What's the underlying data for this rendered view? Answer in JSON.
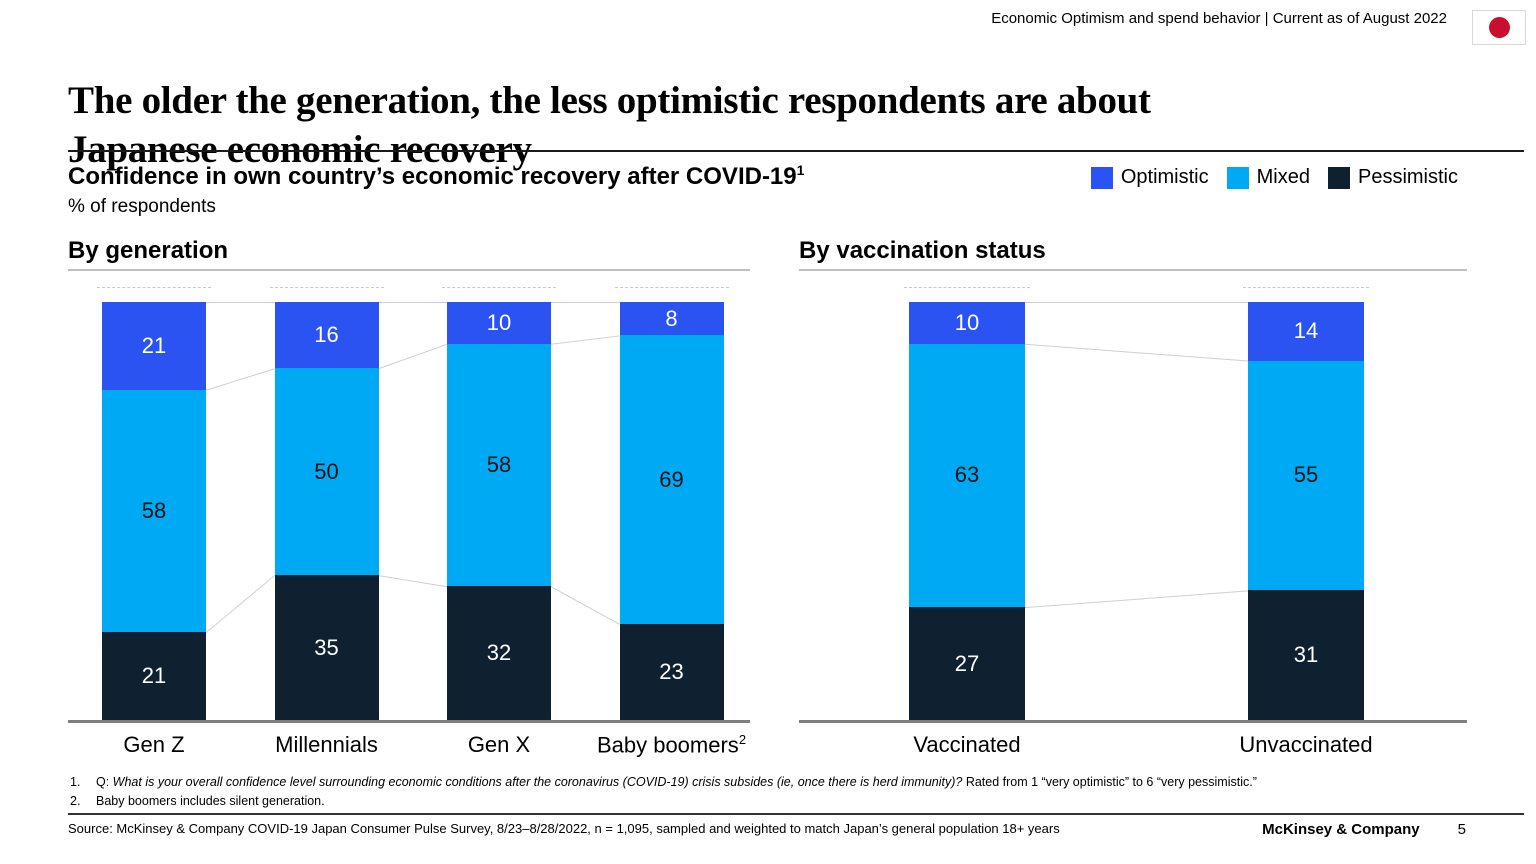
{
  "header": {
    "eyebrow": "Economic Optimism and spend behavior | Current as of August 2022",
    "flag_red": "#c8102e"
  },
  "title": {
    "full": "The older the generation, the less optimistic respondents are about Japanese economic recovery",
    "line1": "The older the generation, the less optimistic respondents are about",
    "line2": "Japanese economic recovery"
  },
  "subtitle": {
    "heading": "Confidence in own country’s economic recovery after COVID-19",
    "heading_footnote_ref": "1",
    "unit": "% of respondents"
  },
  "legend": [
    {
      "label": "Optimistic",
      "color": "#2b53f1"
    },
    {
      "label": "Mixed",
      "color": "#00a9f4"
    },
    {
      "label": "Pessimistic",
      "color": "#0f2130"
    }
  ],
  "chart_data": [
    {
      "type": "bar",
      "subtype": "stacked-column-100pct",
      "title": "By generation",
      "categories": [
        "Gen Z",
        "Millennials",
        "Gen X",
        "Baby boomers"
      ],
      "category_footnote_refs": [
        "",
        "",
        "",
        "2"
      ],
      "series": [
        {
          "name": "Optimistic",
          "color": "#2b53f1",
          "values": [
            21,
            16,
            10,
            8
          ]
        },
        {
          "name": "Mixed",
          "color": "#00a9f4",
          "values": [
            58,
            50,
            58,
            69
          ]
        },
        {
          "name": "Pessimistic",
          "color": "#0f2130",
          "values": [
            21,
            35,
            32,
            23
          ]
        }
      ],
      "ylim": [
        0,
        100
      ],
      "grid": false,
      "legend_position": "top-right-shared"
    },
    {
      "type": "bar",
      "subtype": "stacked-column-100pct",
      "title": "By vaccination status",
      "categories": [
        "Vaccinated",
        "Unvaccinated"
      ],
      "category_footnote_refs": [
        "",
        ""
      ],
      "series": [
        {
          "name": "Optimistic",
          "color": "#2b53f1",
          "values": [
            10,
            14
          ]
        },
        {
          "name": "Mixed",
          "color": "#00a9f4",
          "values": [
            63,
            55
          ]
        },
        {
          "name": "Pessimistic",
          "color": "#0f2130",
          "values": [
            27,
            31
          ]
        }
      ],
      "ylim": [
        0,
        100
      ],
      "grid": false,
      "legend_position": "top-right-shared"
    }
  ],
  "footnotes": [
    {
      "num": "1.",
      "prefix": "Q: ",
      "italic": "What is your overall confidence level surrounding economic conditions after the coronavirus (COVID-19) crisis subsides (ie, once there is herd immunity)?",
      "suffix": " Rated from 1 “very optimistic” to 6 “very pessimistic.”"
    },
    {
      "num": "2.",
      "prefix": "",
      "italic": "",
      "suffix": "Baby boomers includes silent generation."
    }
  ],
  "source": "Source: McKinsey & Company COVID-19 Japan Consumer Pulse Survey, 8/23–8/28/2022, n = 1,095, sampled and weighted to match Japan’s general population 18+ years",
  "footer": {
    "brand": "McKinsey & Company",
    "page": "5"
  }
}
